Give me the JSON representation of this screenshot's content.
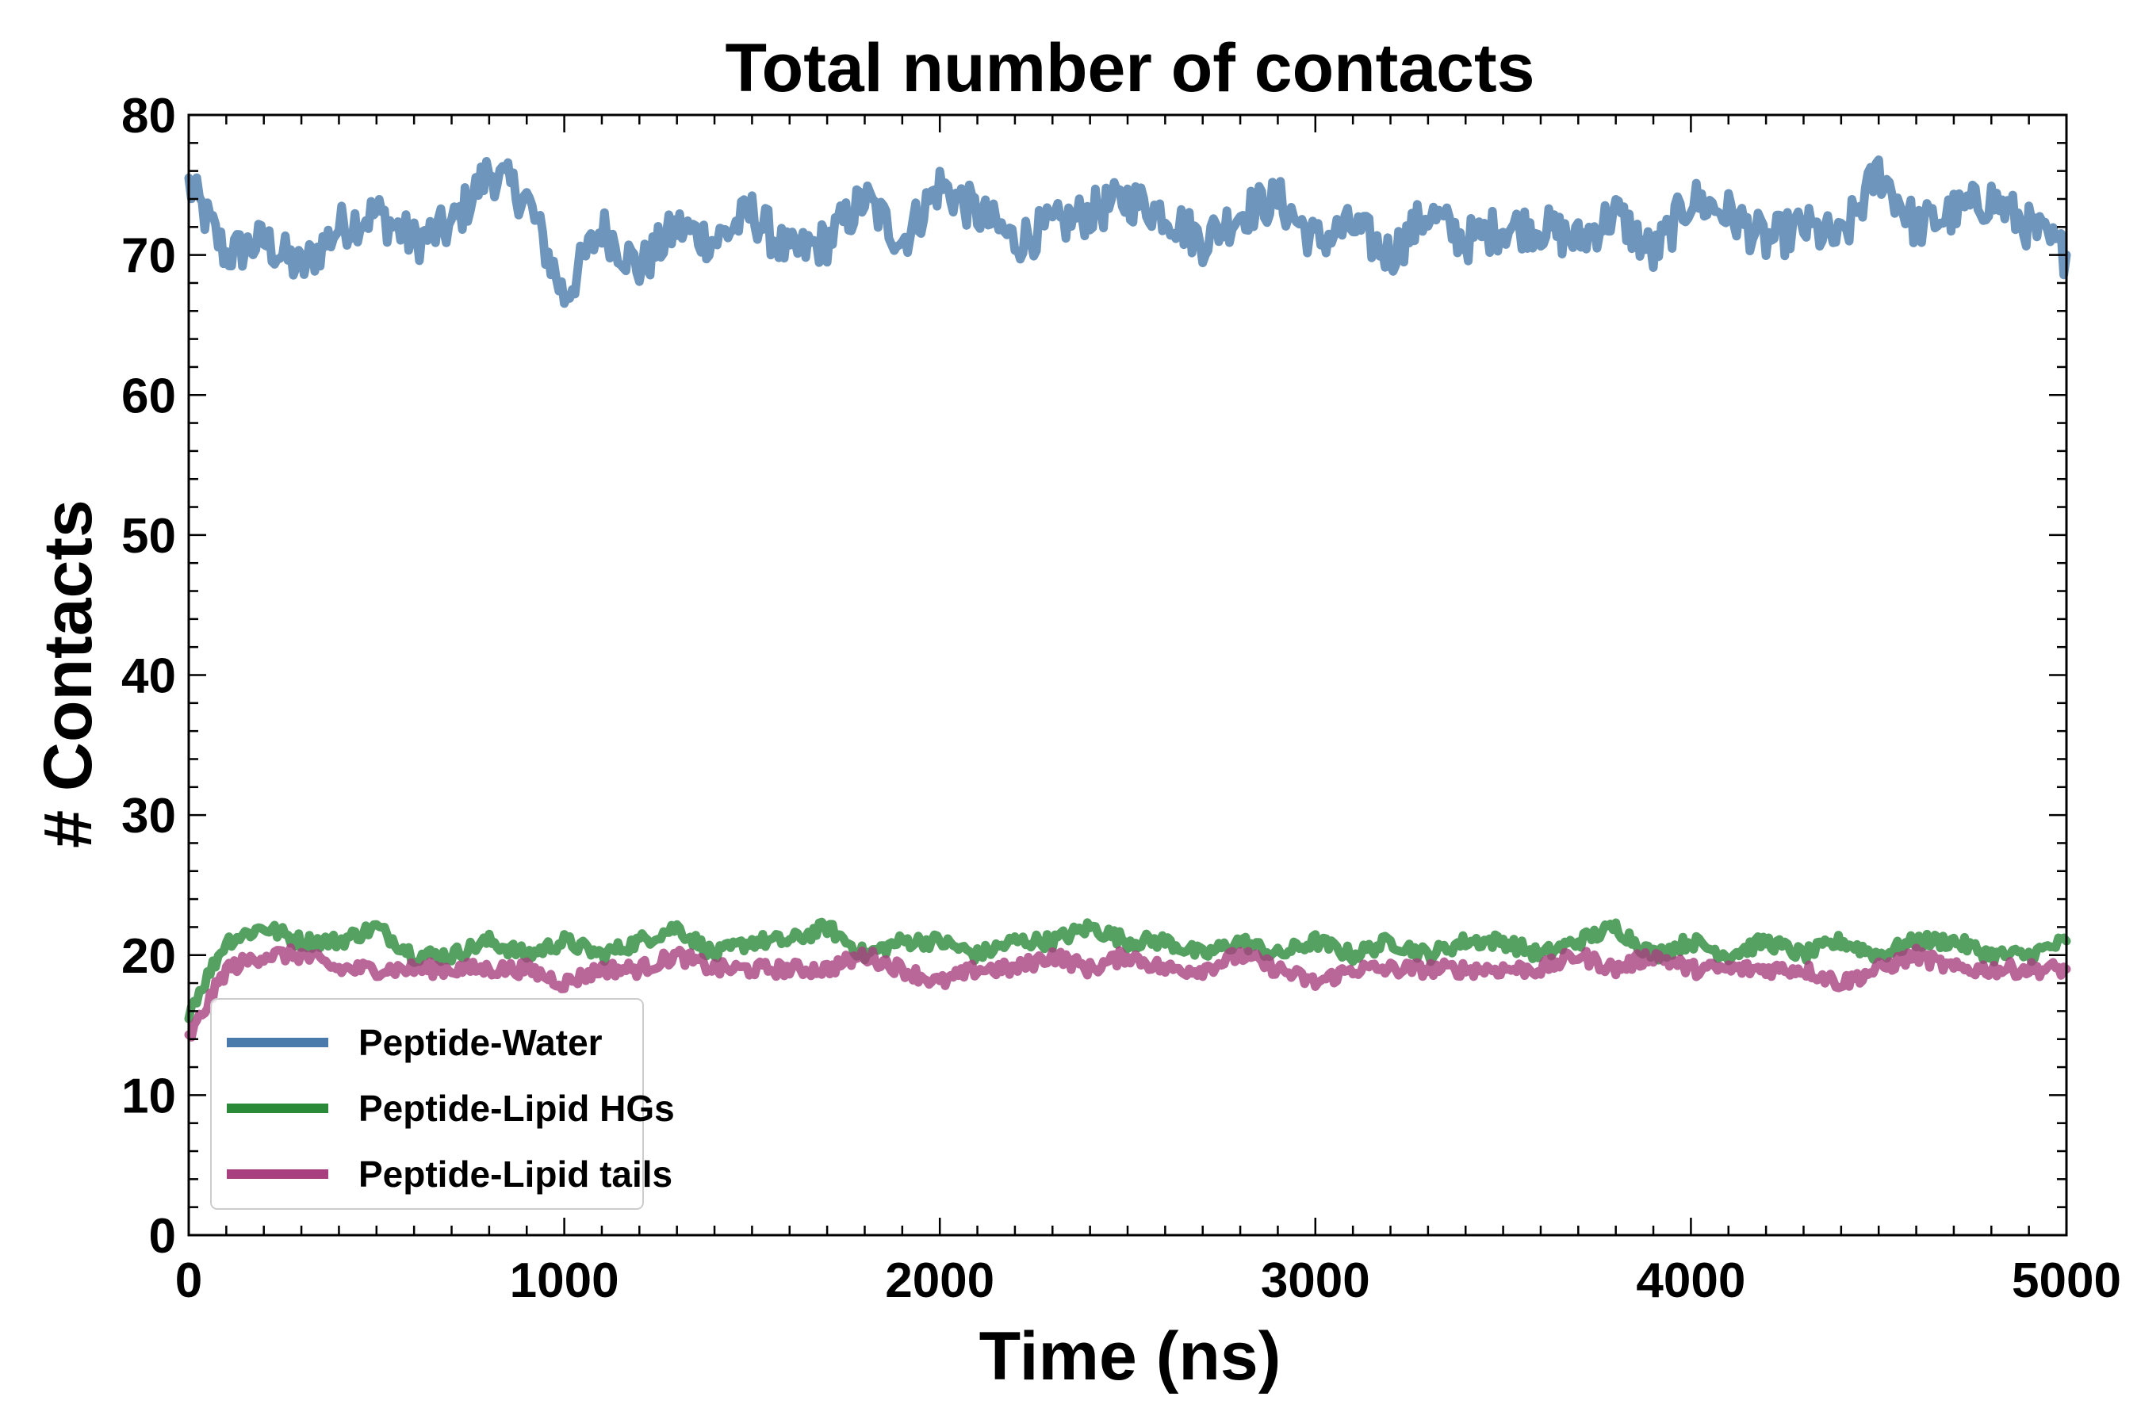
{
  "chart_data": {
    "type": "line",
    "title": "Total number of contacts",
    "xlabel": "Time (ns)",
    "ylabel": "# Contacts",
    "xlim": [
      0,
      5000
    ],
    "ylim": [
      0,
      80
    ],
    "xticks": [
      "0",
      "1000",
      "2000",
      "3000",
      "4000",
      "5000"
    ],
    "yticks": [
      "0",
      "10",
      "20",
      "30",
      "40",
      "50",
      "60",
      "70",
      "80"
    ],
    "grid": false,
    "legend_position": "bottom-left",
    "x": [
      0,
      100,
      200,
      300,
      400,
      500,
      600,
      700,
      800,
      900,
      1000,
      1100,
      1200,
      1300,
      1400,
      1500,
      1600,
      1700,
      1800,
      1900,
      2000,
      2100,
      2200,
      2300,
      2400,
      2500,
      2600,
      2700,
      2800,
      2900,
      3000,
      3100,
      3200,
      3300,
      3400,
      3500,
      3600,
      3700,
      3800,
      3900,
      4000,
      4100,
      4200,
      4300,
      4400,
      4500,
      4600,
      4700,
      4800,
      4900,
      5000
    ],
    "series": [
      {
        "name": "Peptide-Water",
        "color": "#4a7aab",
        "values": [
          75,
          70,
          71,
          69,
          72,
          73,
          71,
          72,
          76,
          74,
          67,
          72,
          69,
          72,
          71,
          73,
          70,
          71,
          74,
          71,
          75,
          73,
          71,
          72,
          73,
          74,
          73,
          71,
          73,
          74,
          71,
          72,
          70,
          73,
          71,
          72,
          72,
          71,
          73,
          70,
          74,
          73,
          71,
          72,
          71,
          76,
          72,
          73,
          74,
          72,
          70
        ]
      },
      {
        "name": "Peptide-Lipid HGs",
        "color": "#2a8a3a",
        "values": [
          16,
          21,
          22,
          21,
          21,
          22,
          20,
          20,
          21,
          20,
          21,
          20,
          21,
          22,
          20,
          21,
          21,
          22,
          20,
          21,
          21,
          20,
          21,
          21,
          22,
          21,
          21,
          20,
          21,
          20,
          21,
          20,
          21,
          20,
          21,
          21,
          20,
          21,
          22,
          20,
          21,
          20,
          21,
          20,
          21,
          20,
          21,
          21,
          20,
          20,
          21
        ]
      },
      {
        "name": "Peptide-Lipid tails",
        "color": "#a8407f",
        "values": [
          14,
          19,
          20,
          20,
          19,
          19,
          19,
          19,
          19,
          19,
          18,
          19,
          19,
          20,
          19,
          19,
          19,
          19,
          20,
          19,
          18,
          19,
          19,
          20,
          19,
          20,
          19,
          19,
          20,
          19,
          18,
          19,
          19,
          19,
          19,
          19,
          19,
          20,
          19,
          20,
          19,
          19,
          19,
          19,
          18,
          19,
          20,
          19,
          19,
          19,
          19
        ]
      }
    ]
  }
}
